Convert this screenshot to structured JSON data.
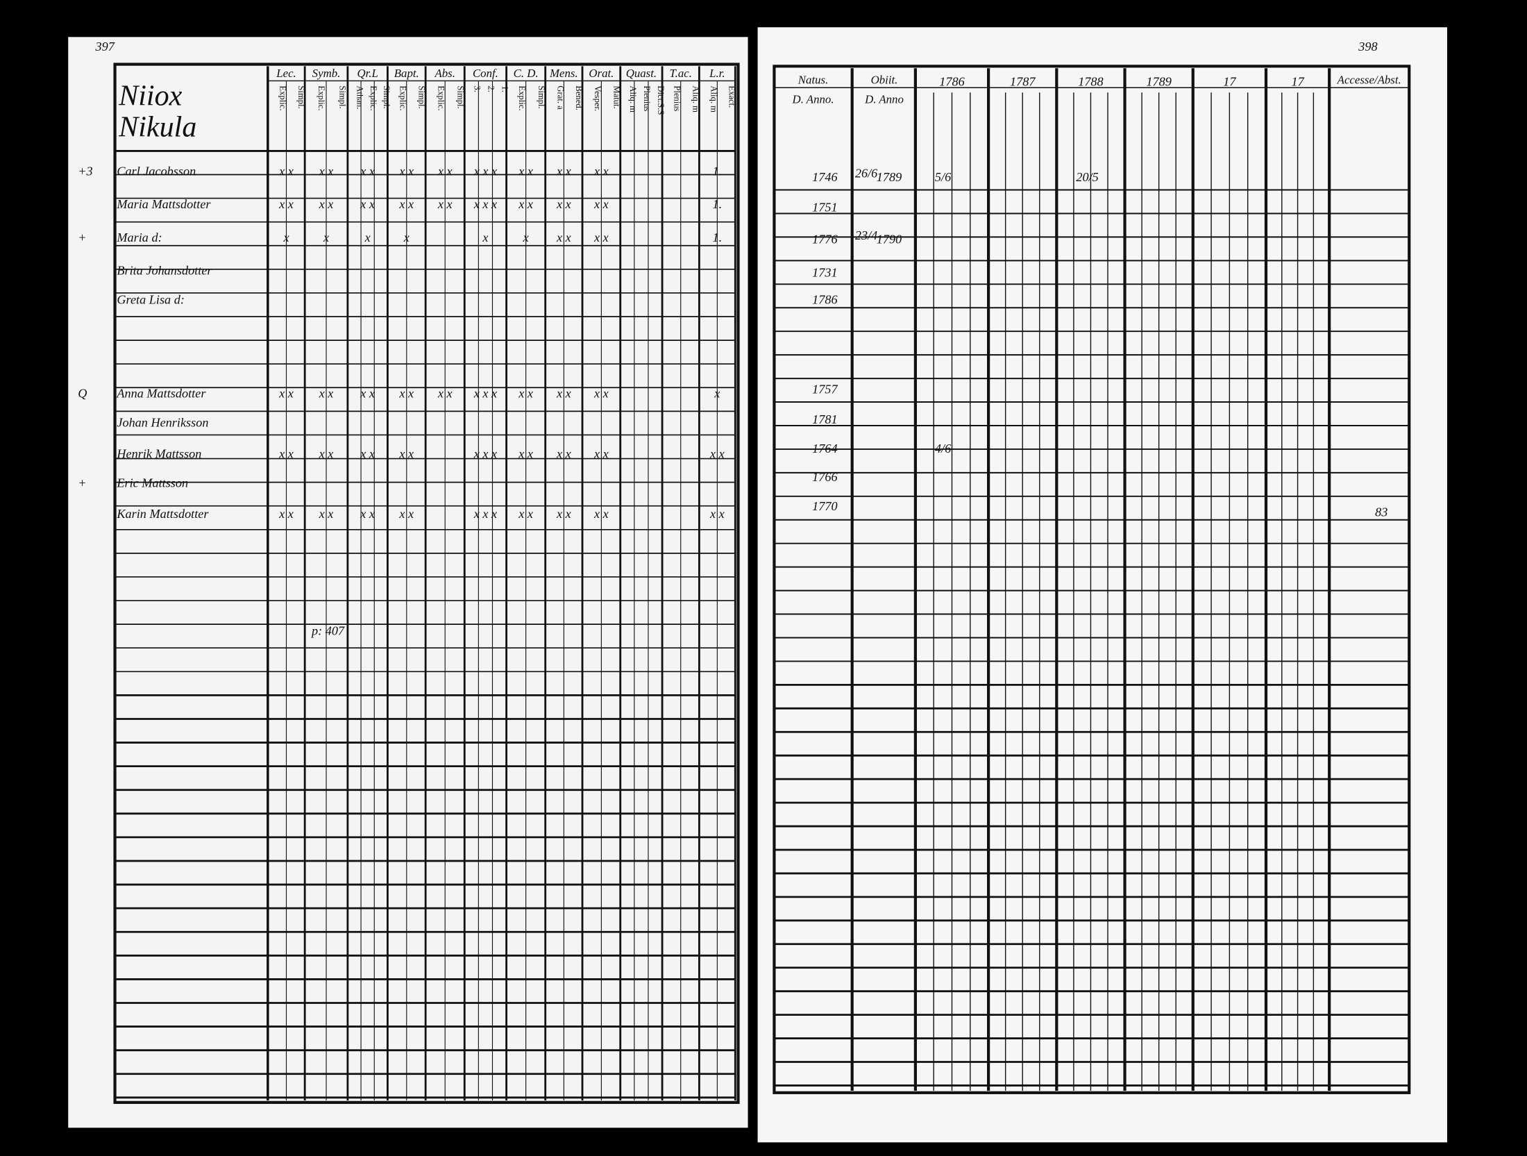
{
  "left_page": {
    "page_number": "397",
    "village": "Niiox",
    "farm": "Nikula",
    "groups": [
      {
        "label": "Lec.",
        "subs": [
          "Explic.",
          "Simpl."
        ]
      },
      {
        "label": "Symb.",
        "subs": [
          "Explic.",
          "Simpl."
        ]
      },
      {
        "label": "Qr.L",
        "subs": [
          "Athan.",
          "Explic.",
          "Simpl."
        ]
      },
      {
        "label": "Bapt.",
        "subs": [
          "Explic.",
          "Simpl."
        ]
      },
      {
        "label": "Abs.",
        "subs": [
          "Explic.",
          "Simpl."
        ]
      },
      {
        "label": "Conf.",
        "subs": [
          "3.",
          "2.",
          "1."
        ]
      },
      {
        "label": "C. D.",
        "subs": [
          "Explic.",
          "Simpl."
        ]
      },
      {
        "label": "Mens.",
        "subs": [
          "Grat. a",
          "Bened."
        ]
      },
      {
        "label": "Orat.",
        "subs": [
          "Vesper.",
          "Matut."
        ]
      },
      {
        "label": "Quast.",
        "subs": [
          "Aliq. m",
          "Plenius",
          "Dict.S.S"
        ]
      },
      {
        "label": "T.ac.",
        "subs": [
          "Plenius",
          "Aliq. m"
        ]
      },
      {
        "label": "L.r.",
        "subs": [
          "Aliq. m",
          "Exact."
        ]
      }
    ],
    "rows": [
      {
        "symbol": "+3",
        "name": "Carl Jacobsson",
        "marks": [
          "x x",
          "x x",
          "x x",
          "x x",
          "x x",
          "x x x",
          "x x",
          "x x",
          "x x",
          "",
          "",
          "1."
        ]
      },
      {
        "symbol": "",
        "name": "Maria Mattsdotter",
        "marks": [
          "x x",
          "x x",
          "x x",
          "x x",
          "x x",
          "x x x",
          "x x",
          "x x",
          "x x",
          "",
          "",
          "1."
        ]
      },
      {
        "symbol": "+",
        "name": "Maria d:",
        "marks": [
          "x",
          "x",
          "x",
          "x",
          "",
          "x",
          "x",
          "x x",
          "x x",
          "",
          "",
          "1."
        ]
      },
      {
        "symbol": "",
        "name": "Brita Johansdotter",
        "marks": [
          "",
          "",
          "",
          "",
          "",
          "",
          "",
          "",
          "",
          "",
          "",
          ""
        ]
      },
      {
        "symbol": "",
        "name": "Greta Lisa d:",
        "marks": [
          "",
          "",
          "",
          "",
          "",
          "",
          "",
          "",
          "",
          "",
          "",
          ""
        ]
      },
      {
        "symbol": "Q",
        "name": "Anna Mattsdotter",
        "marks": [
          "x x",
          "x x",
          "x x",
          "x x",
          "x x",
          "x x x",
          "x x",
          "x x",
          "x x",
          "",
          "",
          "x"
        ]
      },
      {
        "symbol": "",
        "name": "Johan Henriksson",
        "marks": [
          "",
          "",
          "",
          "",
          "",
          "",
          "",
          "",
          "",
          "",
          "",
          ""
        ]
      },
      {
        "symbol": "",
        "name": "Henrik Mattsson",
        "marks": [
          "x x",
          "x x",
          "x x",
          "x x",
          "",
          "x x x",
          "x x",
          "x x",
          "x x",
          "",
          "",
          "x x"
        ]
      },
      {
        "symbol": "+",
        "name": "Eric Mattsson",
        "marks": [
          "",
          "",
          "",
          "",
          "",
          "",
          "",
          "",
          "",
          "",
          "",
          ""
        ]
      },
      {
        "symbol": "",
        "name": "Karin Mattsdotter",
        "marks": [
          "x x",
          "x x",
          "x x",
          "x x",
          "",
          "x x x",
          "x x",
          "x x",
          "x x",
          "",
          "",
          "x x"
        ]
      }
    ],
    "note": "p: 407"
  },
  "right_page": {
    "page_number": "398",
    "born_label": "Natus.",
    "born_sub": "D. Anno.",
    "died_label": "Obiit.",
    "died_sub": "D. Anno",
    "years": [
      "1786",
      "1787",
      "1788",
      "1789",
      "17",
      "17"
    ],
    "moved_label": "Accesse/Abst.",
    "rows": [
      {
        "born": "1746",
        "died_day": "26/6",
        "died_year": "1789",
        "cells": [
          "5/6",
          "",
          "20/5",
          "",
          "",
          ""
        ]
      },
      {
        "born": "1751",
        "died_day": "",
        "died_year": "",
        "cells": [
          "",
          "",
          "",
          "",
          "",
          ""
        ]
      },
      {
        "born": "1776",
        "died_day": "23/4",
        "died_year": "1790",
        "cells": [
          "",
          "",
          "",
          "",
          "",
          ""
        ]
      },
      {
        "born": "1731",
        "died_day": "",
        "died_year": "",
        "cells": [
          "",
          "",
          "",
          "",
          "",
          ""
        ]
      },
      {
        "born": "1786",
        "died_day": "",
        "died_year": "",
        "cells": [
          "",
          "",
          "",
          "",
          "",
          ""
        ]
      },
      {
        "born": "1757",
        "died_day": "",
        "died_year": "",
        "cells": [
          "",
          "",
          "",
          "",
          "",
          ""
        ]
      },
      {
        "born": "1781",
        "died_day": "",
        "died_year": "",
        "cells": [
          "",
          "",
          "",
          "",
          "",
          ""
        ]
      },
      {
        "born": "1764",
        "died_day": "",
        "died_year": "",
        "cells": [
          "4/6",
          "",
          "",
          "",
          "",
          ""
        ]
      },
      {
        "born": "1766",
        "died_day": "",
        "died_year": "",
        "cells": [
          "",
          "",
          "",
          "",
          "",
          ""
        ]
      },
      {
        "born": "1770",
        "died_day": "",
        "died_year": "",
        "cells": [
          "",
          "",
          "",
          "",
          "",
          ""
        ]
      }
    ],
    "moved_note": "83"
  }
}
